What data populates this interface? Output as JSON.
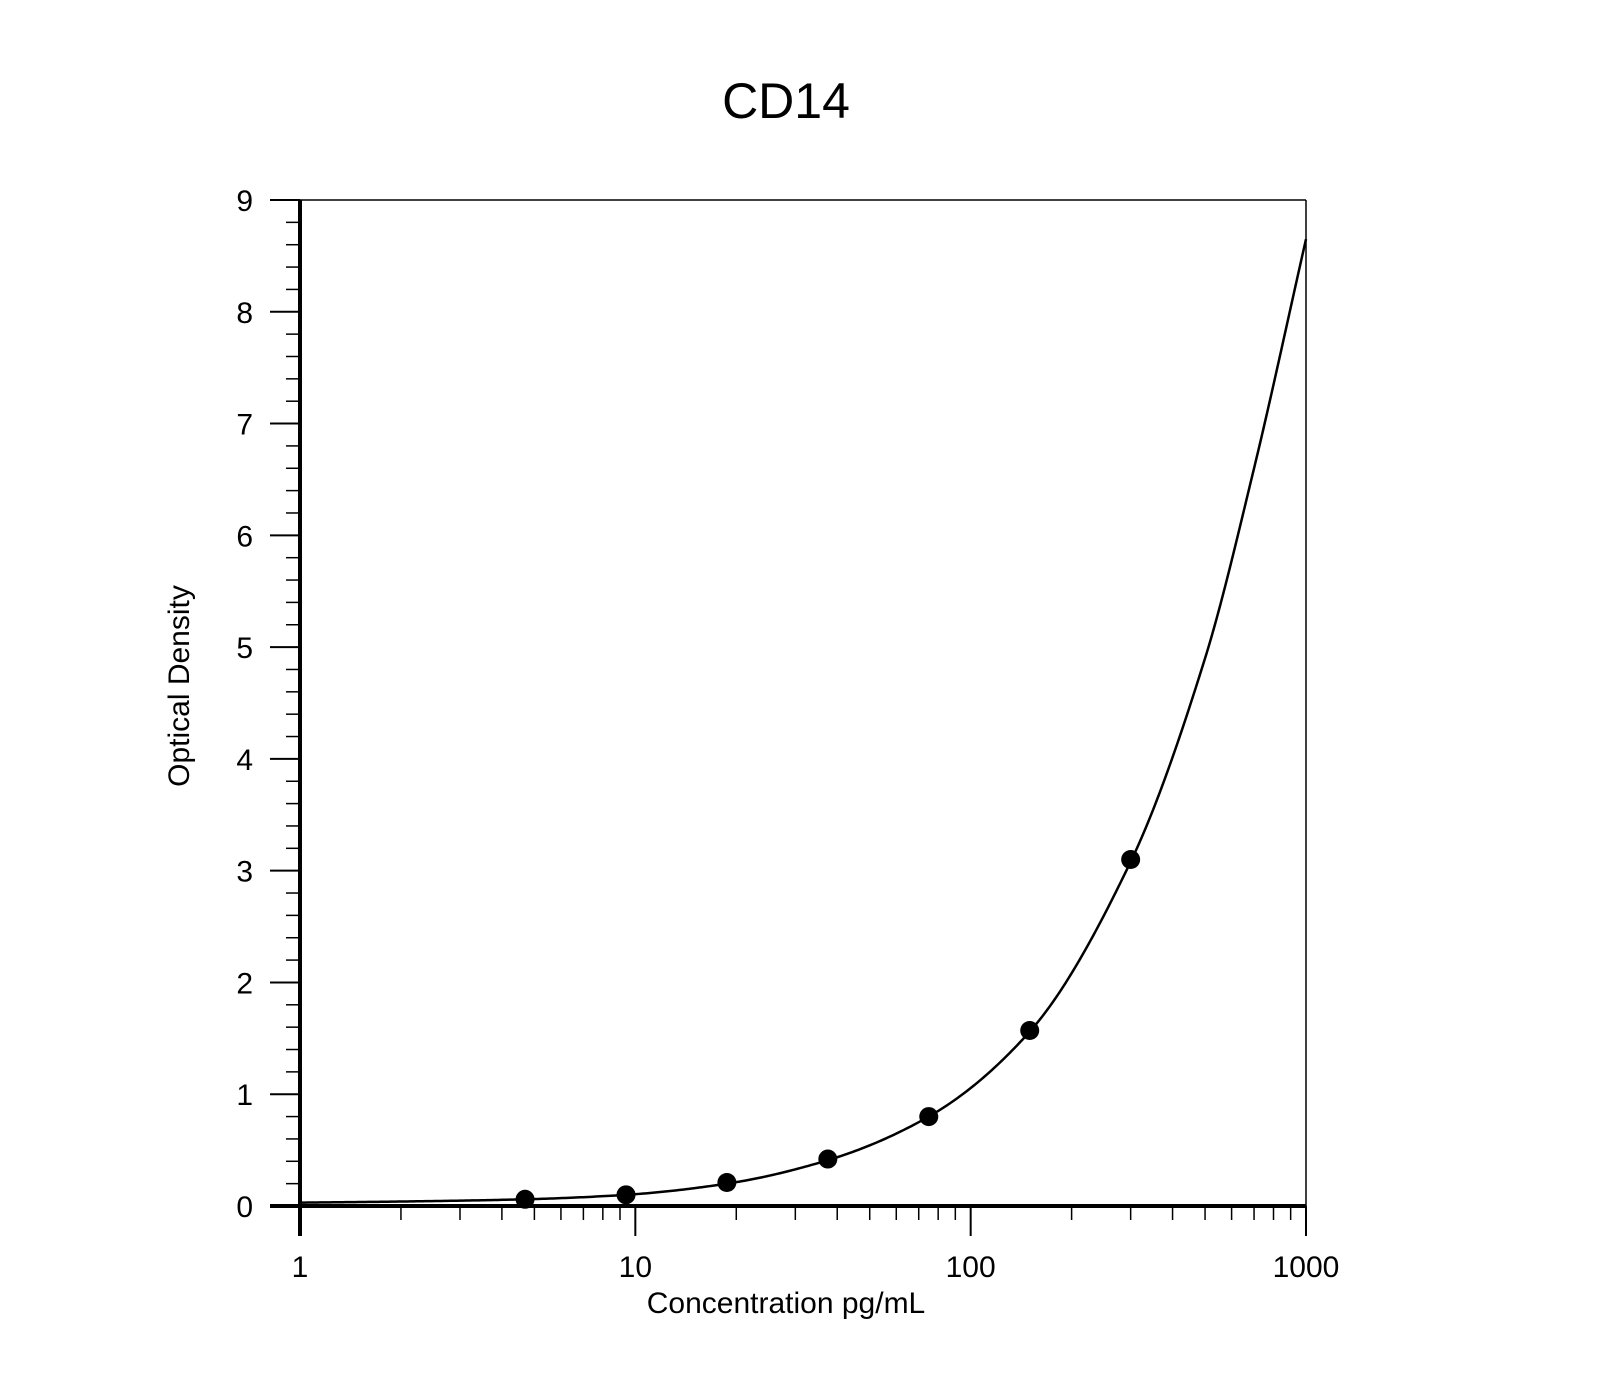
{
  "chart_data": {
    "type": "scatter",
    "title": "CD14",
    "xlabel": "Concentration pg/mL",
    "ylabel": "Optical Density",
    "x_scale": "log",
    "xlim": [
      1,
      1000
    ],
    "ylim": [
      0,
      9
    ],
    "x_ticks": [
      1,
      10,
      100,
      1000
    ],
    "x_tick_labels": [
      "1",
      "10",
      "100",
      "1000"
    ],
    "y_ticks": [
      0,
      1,
      2,
      3,
      4,
      5,
      6,
      7,
      8,
      9
    ],
    "y_tick_labels": [
      "0",
      "1",
      "2",
      "3",
      "4",
      "5",
      "6",
      "7",
      "8",
      "9"
    ],
    "grid": false,
    "legend": "none",
    "series": [
      {
        "kind": "points",
        "x": [
          4.69,
          9.38,
          18.75,
          37.5,
          75,
          150,
          300
        ],
        "y": [
          0.06,
          0.1,
          0.21,
          0.42,
          0.8,
          1.57,
          3.1
        ]
      },
      {
        "kind": "fitted-curve",
        "x": [
          1,
          2,
          4.69,
          9.38,
          18.75,
          37.5,
          75,
          150,
          300,
          500,
          700,
          1000
        ],
        "y": [
          0.03,
          0.04,
          0.06,
          0.1,
          0.2,
          0.41,
          0.8,
          1.56,
          3.08,
          4.9,
          6.6,
          8.65
        ]
      }
    ],
    "colors": {
      "points": "#000000",
      "curve": "#000000",
      "axes": "#000000"
    }
  }
}
